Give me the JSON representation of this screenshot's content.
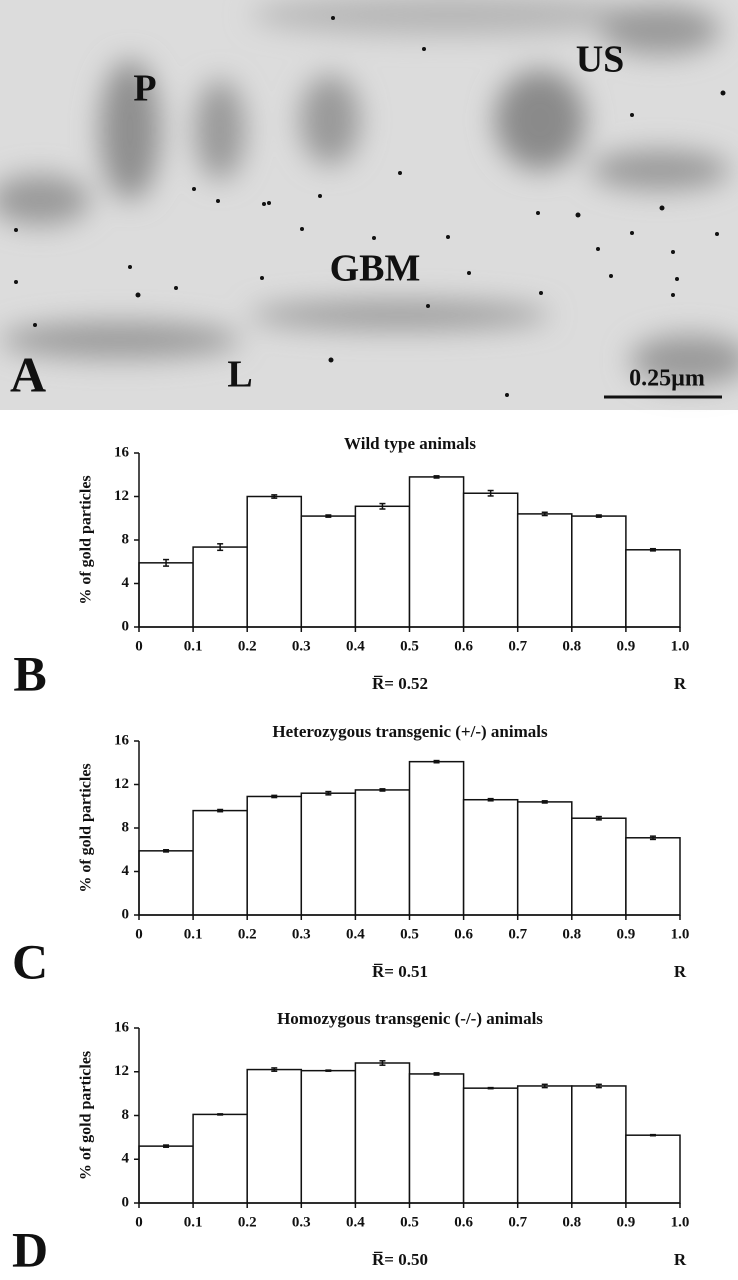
{
  "panel_a": {
    "panel_label": "A",
    "labels": [
      "P",
      "US",
      "GBM",
      "L"
    ],
    "scale_bar": "0.25µm"
  },
  "chart_data": [
    {
      "type": "histogram",
      "panel_label": "B",
      "title": "Wild type animals",
      "ylabel": "% of gold particles",
      "xlabel": "R",
      "mean_label": "R̅= 0.52",
      "bins": [
        0,
        0.1,
        0.2,
        0.3,
        0.4,
        0.5,
        0.6,
        0.7,
        0.8,
        0.9,
        1
      ],
      "values": [
        5.9,
        7.35,
        12.0,
        10.2,
        11.1,
        13.8,
        12.3,
        10.4,
        10.2,
        7.1
      ],
      "errors": [
        0.3,
        0.3,
        0.15,
        0.1,
        0.25,
        0.1,
        0.25,
        0.15,
        0.1,
        0.1
      ],
      "color": "#ffffff",
      "ylim": [
        0,
        16
      ],
      "yticks": [
        0,
        4,
        8,
        12,
        16
      ],
      "xlim": [
        0,
        1
      ],
      "xticks": [
        0,
        0.1,
        0.2,
        0.3,
        0.4,
        0.5,
        0.6,
        0.7,
        0.8,
        0.9,
        {
          "value": 1,
          "label": "1.0"
        }
      ]
    },
    {
      "type": "histogram",
      "panel_label": "C",
      "title": "Heterozygous transgenic (+/-) animals",
      "ylabel": "% of gold particles",
      "xlabel": "R",
      "mean_label": "R̅= 0.51",
      "bins": [
        0,
        0.1,
        0.2,
        0.3,
        0.4,
        0.5,
        0.6,
        0.7,
        0.8,
        0.9,
        1
      ],
      "values": [
        5.9,
        9.6,
        10.9,
        11.2,
        11.5,
        14.1,
        10.6,
        10.4,
        8.9,
        7.1
      ],
      "errors": [
        0.1,
        0.1,
        0.1,
        0.15,
        0.1,
        0.1,
        0.1,
        0.1,
        0.15,
        0.15
      ],
      "color": "#ffffff",
      "ylim": [
        0,
        16
      ],
      "yticks": [
        0,
        4,
        8,
        12,
        16
      ],
      "xlim": [
        0,
        1
      ],
      "xticks": [
        0,
        0.1,
        0.2,
        0.3,
        0.4,
        0.5,
        0.6,
        0.7,
        0.8,
        0.9,
        {
          "value": 1,
          "label": "1.0"
        }
      ]
    },
    {
      "type": "histogram",
      "panel_label": "D",
      "title": "Homozygous transgenic (-/-) animals",
      "ylabel": "% of gold particles",
      "xlabel": "R",
      "mean_label": "R̅= 0.50",
      "bins": [
        0,
        0.1,
        0.2,
        0.3,
        0.4,
        0.5,
        0.6,
        0.7,
        0.8,
        0.9,
        1
      ],
      "values": [
        5.2,
        8.1,
        12.2,
        12.1,
        12.8,
        11.8,
        10.5,
        10.7,
        10.7,
        6.2
      ],
      "errors": [
        0.1,
        0.05,
        0.15,
        0.05,
        0.2,
        0.1,
        0.05,
        0.15,
        0.15,
        0.05
      ],
      "color": "#ffffff",
      "ylim": [
        0,
        16
      ],
      "yticks": [
        0,
        4,
        8,
        12,
        16
      ],
      "xlim": [
        0,
        1
      ],
      "xticks": [
        0,
        0.1,
        0.2,
        0.3,
        0.4,
        0.5,
        0.6,
        0.7,
        0.8,
        0.9,
        {
          "value": 1,
          "label": "1.0"
        }
      ]
    }
  ]
}
